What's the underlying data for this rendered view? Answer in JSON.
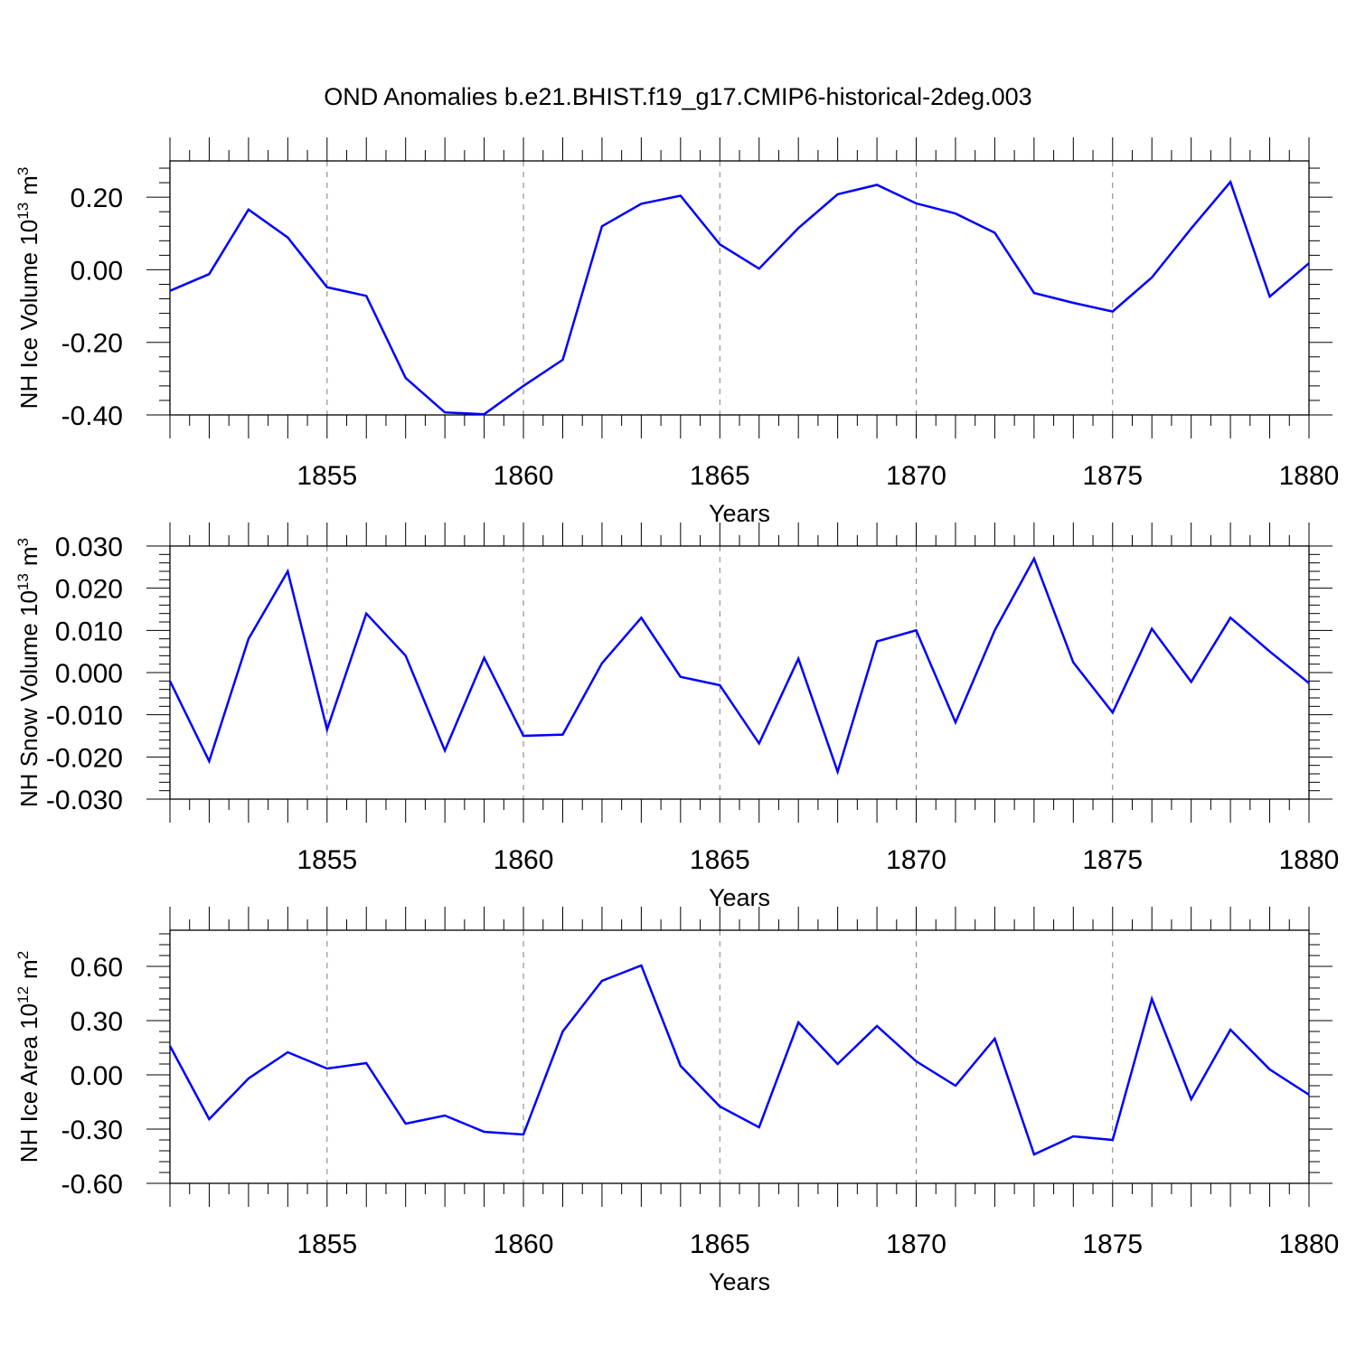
{
  "title": "OND Anomalies b.e21.BHIST.f19_g17.CMIP6-historical-2deg.003",
  "colors": {
    "line": "#0000ff",
    "axis": "#000000",
    "grid": "#7f7f7f",
    "background": "#ffffff"
  },
  "chart_data": [
    {
      "type": "line",
      "ylabel_main": "NH Ice Volume 10",
      "ylabel_exp": "13",
      "ylabel_unit": "m",
      "ylabel_unit_exp": "3",
      "xlabel": "Years",
      "xlim": [
        1851,
        1880
      ],
      "ylim": [
        -0.4,
        0.3
      ],
      "ytick_values": [
        -0.4,
        -0.2,
        0.0,
        0.2
      ],
      "ytick_labels": [
        "-0.40",
        "-0.20",
        "0.00",
        "0.20"
      ],
      "xtick_values": [
        1855,
        1860,
        1865,
        1870,
        1875,
        1880
      ],
      "xtick_labels": [
        "1855",
        "1860",
        "1865",
        "1870",
        "1875",
        "1880"
      ],
      "grid_x": [
        1855,
        1860,
        1865,
        1870,
        1875
      ],
      "series": [
        {
          "name": "NH Ice Volume",
          "x": [
            1851,
            1852,
            1853,
            1854,
            1855,
            1856,
            1857,
            1858,
            1859,
            1860,
            1861,
            1862,
            1863,
            1864,
            1865,
            1866,
            1867,
            1868,
            1869,
            1870,
            1871,
            1872,
            1873,
            1874,
            1875,
            1876,
            1877,
            1878,
            1879,
            1880
          ],
          "values": [
            -0.058,
            -0.012,
            0.166,
            0.089,
            -0.048,
            -0.072,
            -0.298,
            -0.393,
            -0.398,
            -0.32,
            -0.248,
            0.12,
            0.182,
            0.204,
            0.07,
            0.003,
            0.115,
            0.208,
            0.234,
            0.183,
            0.155,
            0.102,
            -0.064,
            -0.091,
            -0.115,
            -0.021,
            0.114,
            0.242,
            -0.074,
            0.018
          ]
        }
      ]
    },
    {
      "type": "line",
      "ylabel_main": "NH Snow Volume 10",
      "ylabel_exp": "13",
      "ylabel_unit": "m",
      "ylabel_unit_exp": "3",
      "xlabel": "Years",
      "xlim": [
        1851,
        1880
      ],
      "ylim": [
        -0.03,
        0.03
      ],
      "ytick_values": [
        -0.03,
        -0.02,
        -0.01,
        0.0,
        0.01,
        0.02,
        0.03
      ],
      "ytick_labels": [
        "-0.030",
        "-0.020",
        "-0.010",
        "0.000",
        "0.010",
        "0.020",
        "0.030"
      ],
      "xtick_values": [
        1855,
        1860,
        1865,
        1870,
        1875,
        1880
      ],
      "xtick_labels": [
        "1855",
        "1860",
        "1865",
        "1870",
        "1875",
        "1880"
      ],
      "grid_x": [
        1855,
        1860,
        1865,
        1870,
        1875
      ],
      "series": [
        {
          "name": "NH Snow Volume",
          "x": [
            1851,
            1852,
            1853,
            1854,
            1855,
            1856,
            1857,
            1858,
            1859,
            1860,
            1861,
            1862,
            1863,
            1864,
            1865,
            1866,
            1867,
            1868,
            1869,
            1870,
            1871,
            1872,
            1873,
            1874,
            1875,
            1876,
            1877,
            1878,
            1879,
            1880
          ],
          "values": [
            -0.002,
            -0.021,
            0.008,
            0.024,
            -0.0135,
            0.014,
            0.004,
            -0.0185,
            0.0035,
            -0.015,
            -0.0147,
            0.0022,
            0.013,
            -0.001,
            -0.003,
            -0.0168,
            0.0033,
            -0.0235,
            0.0074,
            0.01,
            -0.0118,
            0.01,
            0.027,
            0.0024,
            -0.0095,
            0.0104,
            -0.0022,
            0.013,
            0.005,
            -0.0025
          ]
        }
      ]
    },
    {
      "type": "line",
      "ylabel_main": "NH Ice Area 10",
      "ylabel_exp": "12",
      "ylabel_unit": "m",
      "ylabel_unit_exp": "2",
      "xlabel": "Years",
      "xlim": [
        1851,
        1880
      ],
      "ylim": [
        -0.6,
        0.8
      ],
      "ytick_values": [
        -0.6,
        -0.3,
        0.0,
        0.3,
        0.6
      ],
      "ytick_labels": [
        "-0.60",
        "-0.30",
        "0.00",
        "0.30",
        "0.60"
      ],
      "xtick_values": [
        1855,
        1860,
        1865,
        1870,
        1875,
        1880
      ],
      "xtick_labels": [
        "1855",
        "1860",
        "1865",
        "1870",
        "1875",
        "1880"
      ],
      "grid_x": [
        1855,
        1860,
        1865,
        1870,
        1875
      ],
      "series": [
        {
          "name": "NH Ice Area",
          "x": [
            1851,
            1852,
            1853,
            1854,
            1855,
            1856,
            1857,
            1858,
            1859,
            1860,
            1861,
            1862,
            1863,
            1864,
            1865,
            1866,
            1867,
            1868,
            1869,
            1870,
            1871,
            1872,
            1873,
            1874,
            1875,
            1876,
            1877,
            1878,
            1879,
            1880
          ],
          "values": [
            0.16,
            -0.245,
            -0.02,
            0.125,
            0.035,
            0.065,
            -0.27,
            -0.225,
            -0.315,
            -0.33,
            0.24,
            0.52,
            0.605,
            0.05,
            -0.175,
            -0.29,
            0.29,
            0.06,
            0.27,
            0.075,
            -0.06,
            0.2,
            -0.44,
            -0.34,
            -0.36,
            0.42,
            -0.135,
            0.25,
            0.03,
            -0.11
          ]
        }
      ]
    }
  ]
}
